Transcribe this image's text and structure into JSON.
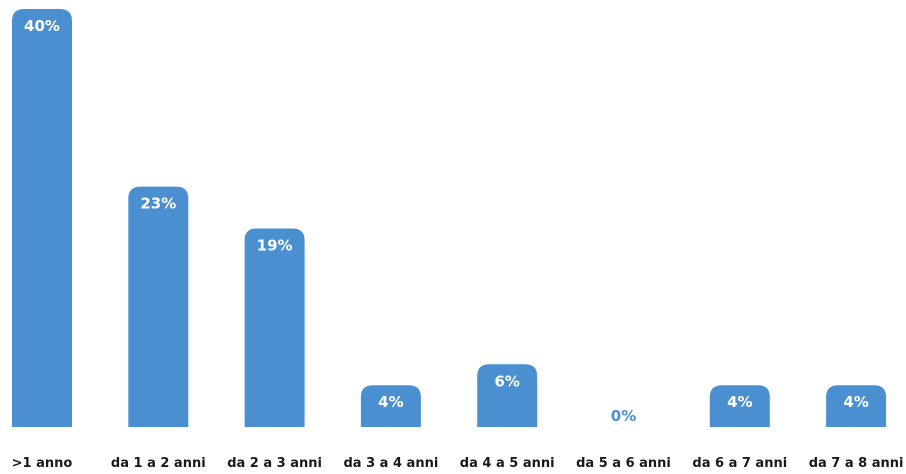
{
  "colors": {
    "bar": "#4a90d0",
    "label_inside": "#ffffff",
    "label_outside": "#4a90d0",
    "axis_text": "#1a1a1a"
  },
  "chart_data": {
    "type": "bar",
    "categories": [
      ">1 anno",
      "da 1 a 2 anni",
      "da 2 a 3 anni",
      "da 3 a 4 anni",
      "da 4 a 5 anni",
      "da 5 a 6 anni",
      "da 6 a 7 anni",
      "da 7 a 8 anni"
    ],
    "values": [
      40,
      23,
      19,
      4,
      6,
      0,
      4,
      4
    ],
    "value_labels": [
      "40%",
      "23%",
      "19%",
      "4%",
      "6%",
      "0%",
      "4%",
      "4%"
    ],
    "ylim": [
      0,
      40
    ],
    "grid": false,
    "legend": "none"
  }
}
